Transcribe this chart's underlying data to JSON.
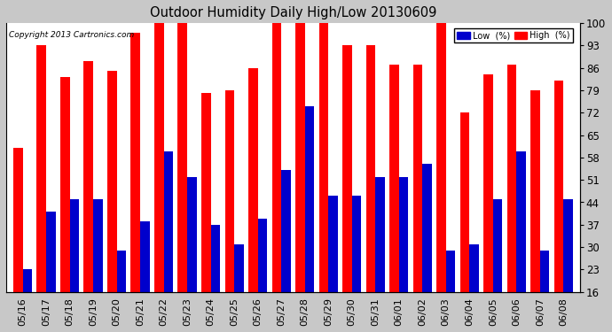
{
  "title": "Outdoor Humidity Daily High/Low 20130609",
  "copyright": "Copyright 2013 Cartronics.com",
  "dates": [
    "05/16",
    "05/17",
    "05/18",
    "05/19",
    "05/20",
    "05/21",
    "05/22",
    "05/23",
    "05/24",
    "05/25",
    "05/26",
    "05/27",
    "05/28",
    "05/29",
    "05/30",
    "05/31",
    "06/01",
    "06/02",
    "06/03",
    "06/04",
    "06/05",
    "06/06",
    "06/07",
    "06/08"
  ],
  "high": [
    61,
    93,
    83,
    88,
    85,
    97,
    100,
    100,
    78,
    79,
    86,
    100,
    100,
    100,
    93,
    93,
    87,
    87,
    100,
    72,
    84,
    87,
    79,
    82
  ],
  "low": [
    23,
    41,
    45,
    45,
    29,
    38,
    60,
    52,
    37,
    31,
    39,
    54,
    74,
    46,
    46,
    52,
    52,
    56,
    29,
    31,
    45,
    60,
    29,
    45
  ],
  "high_color": "#ff0000",
  "low_color": "#0000cc",
  "bg_color": "#c8c8c8",
  "plot_bg_color": "#ffffff",
  "grid_color": "#ffffff",
  "ylim_min": 16,
  "ylim_max": 100,
  "yticks": [
    16,
    23,
    30,
    37,
    44,
    51,
    58,
    65,
    72,
    79,
    86,
    93,
    100
  ],
  "bar_width": 0.4,
  "legend_low_label": "Low  (%)",
  "legend_high_label": "High  (%)"
}
